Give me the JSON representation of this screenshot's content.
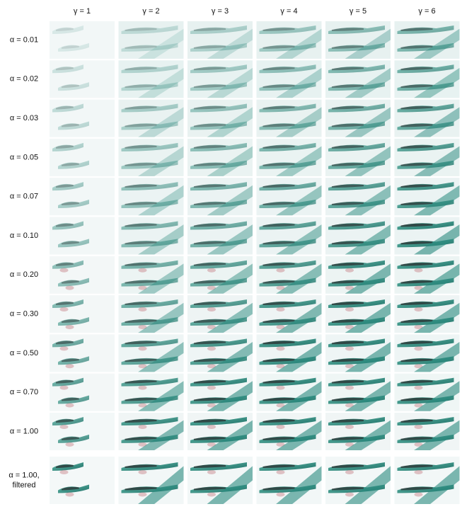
{
  "header": {
    "columns": [
      "γ = 1",
      "γ = 2",
      "γ = 3",
      "γ = 4",
      "γ = 5",
      "γ = 6"
    ]
  },
  "rows": [
    "α = 0.01",
    "α = 0.02",
    "α = 0.03",
    "α = 0.05",
    "α = 0.07",
    "α = 0.10",
    "α = 0.20",
    "α = 0.30",
    "α = 0.50",
    "α = 0.70",
    "α = 1.00"
  ],
  "final_row": {
    "lines": [
      "α = 1.00,",
      "filtered"
    ]
  }
}
